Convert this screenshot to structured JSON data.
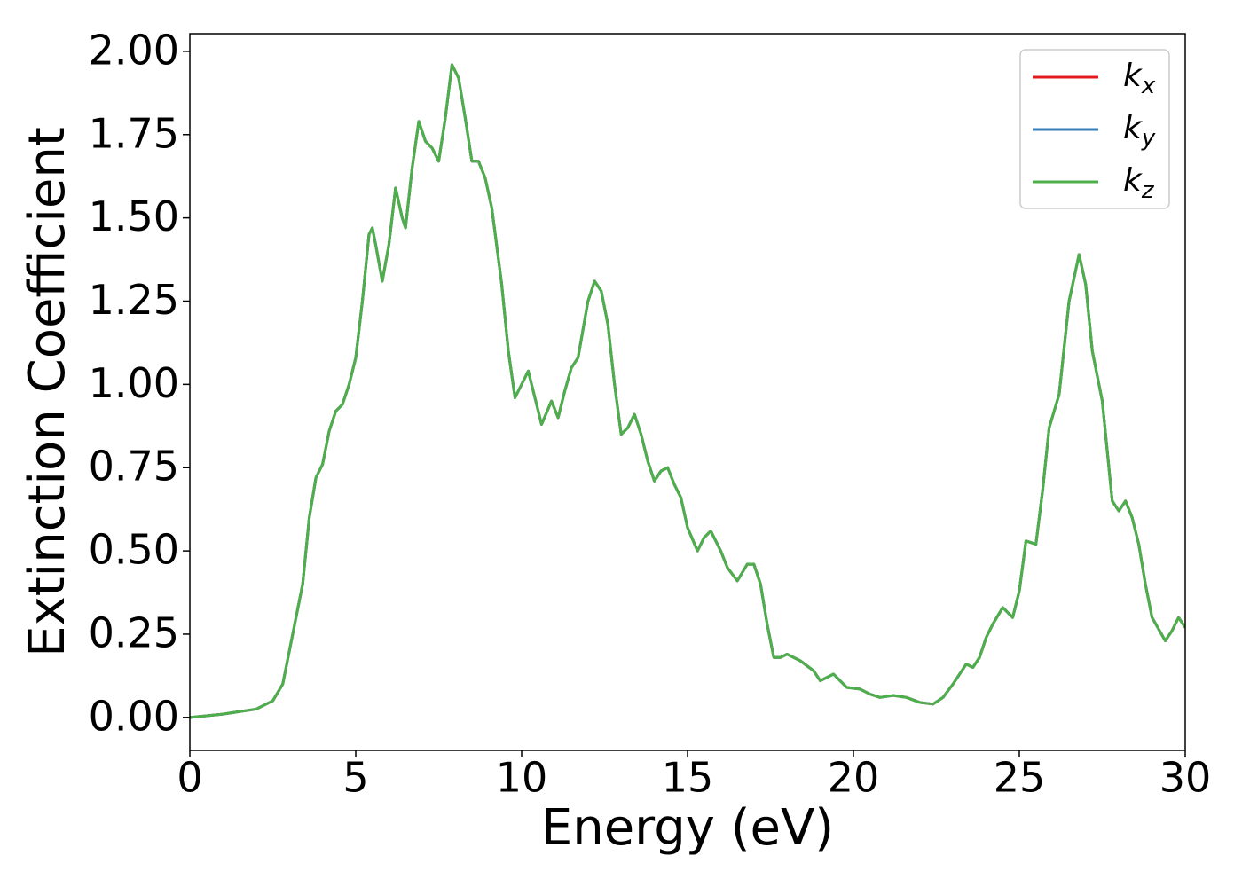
{
  "chart_data": {
    "type": "line",
    "xlabel": "Energy (eV)",
    "ylabel": "Extinction Coefficient",
    "x": [
      0,
      1,
      2,
      2.5,
      2.8,
      3.0,
      3.2,
      3.4,
      3.6,
      3.8,
      4.0,
      4.2,
      4.4,
      4.6,
      4.8,
      5.0,
      5.2,
      5.4,
      5.5,
      5.6,
      5.8,
      6.0,
      6.2,
      6.4,
      6.5,
      6.7,
      6.9,
      7.1,
      7.3,
      7.5,
      7.7,
      7.9,
      8.1,
      8.3,
      8.5,
      8.7,
      8.9,
      9.1,
      9.4,
      9.6,
      9.8,
      10.0,
      10.2,
      10.4,
      10.6,
      10.9,
      11.1,
      11.3,
      11.5,
      11.7,
      12.0,
      12.2,
      12.4,
      12.6,
      12.8,
      13.0,
      13.2,
      13.4,
      13.6,
      13.8,
      14.0,
      14.2,
      14.4,
      14.6,
      14.8,
      15.0,
      15.3,
      15.5,
      15.7,
      16.0,
      16.2,
      16.5,
      16.8,
      17.0,
      17.2,
      17.4,
      17.6,
      17.8,
      18.0,
      18.4,
      18.8,
      19.0,
      19.2,
      19.4,
      19.6,
      19.8,
      20.2,
      20.5,
      20.8,
      21.2,
      21.6,
      22.0,
      22.4,
      22.7,
      23.0,
      23.4,
      23.6,
      23.8,
      24.0,
      24.2,
      24.5,
      24.8,
      25.0,
      25.2,
      25.5,
      25.7,
      25.9,
      26.2,
      26.5,
      26.8,
      27.0,
      27.2,
      27.5,
      27.8,
      28.0,
      28.2,
      28.4,
      28.6,
      28.8,
      29.0,
      29.4,
      29.6,
      29.8,
      30.0
    ],
    "series": [
      {
        "name": "kx",
        "color": "#e41a1c",
        "values": [
          0,
          0.01,
          0.025,
          0.05,
          0.1,
          0.2,
          0.3,
          0.4,
          0.6,
          0.72,
          0.76,
          0.86,
          0.92,
          0.94,
          1.0,
          1.08,
          1.25,
          1.45,
          1.47,
          1.42,
          1.31,
          1.42,
          1.59,
          1.5,
          1.47,
          1.65,
          1.79,
          1.73,
          1.71,
          1.67,
          1.8,
          1.96,
          1.92,
          1.8,
          1.67,
          1.67,
          1.62,
          1.53,
          1.3,
          1.1,
          0.96,
          1.0,
          1.04,
          0.96,
          0.88,
          0.95,
          0.9,
          0.98,
          1.05,
          1.08,
          1.25,
          1.31,
          1.28,
          1.18,
          1.0,
          0.85,
          0.87,
          0.91,
          0.85,
          0.77,
          0.71,
          0.74,
          0.75,
          0.7,
          0.66,
          0.57,
          0.5,
          0.54,
          0.56,
          0.5,
          0.45,
          0.41,
          0.46,
          0.46,
          0.4,
          0.28,
          0.18,
          0.18,
          0.19,
          0.17,
          0.14,
          0.11,
          0.12,
          0.13,
          0.11,
          0.09,
          0.085,
          0.07,
          0.06,
          0.066,
          0.06,
          0.045,
          0.04,
          0.06,
          0.1,
          0.16,
          0.15,
          0.18,
          0.24,
          0.28,
          0.33,
          0.3,
          0.38,
          0.53,
          0.52,
          0.68,
          0.87,
          0.97,
          1.25,
          1.39,
          1.3,
          1.1,
          0.95,
          0.65,
          0.62,
          0.65,
          0.6,
          0.52,
          0.4,
          0.3,
          0.23,
          0.26,
          0.3,
          0.27
        ]
      },
      {
        "name": "ky",
        "color": "#377eb8",
        "values": [
          0,
          0.01,
          0.025,
          0.05,
          0.1,
          0.2,
          0.3,
          0.4,
          0.6,
          0.72,
          0.76,
          0.86,
          0.92,
          0.94,
          1.0,
          1.08,
          1.25,
          1.45,
          1.47,
          1.42,
          1.31,
          1.42,
          1.59,
          1.5,
          1.47,
          1.65,
          1.79,
          1.73,
          1.71,
          1.67,
          1.8,
          1.96,
          1.92,
          1.8,
          1.67,
          1.67,
          1.62,
          1.53,
          1.3,
          1.1,
          0.96,
          1.0,
          1.04,
          0.96,
          0.88,
          0.95,
          0.9,
          0.98,
          1.05,
          1.08,
          1.25,
          1.31,
          1.28,
          1.18,
          1.0,
          0.85,
          0.87,
          0.91,
          0.85,
          0.77,
          0.71,
          0.74,
          0.75,
          0.7,
          0.66,
          0.57,
          0.5,
          0.54,
          0.56,
          0.5,
          0.45,
          0.41,
          0.46,
          0.46,
          0.4,
          0.28,
          0.18,
          0.18,
          0.19,
          0.17,
          0.14,
          0.11,
          0.12,
          0.13,
          0.11,
          0.09,
          0.085,
          0.07,
          0.06,
          0.066,
          0.06,
          0.045,
          0.04,
          0.06,
          0.1,
          0.16,
          0.15,
          0.18,
          0.24,
          0.28,
          0.33,
          0.3,
          0.38,
          0.53,
          0.52,
          0.68,
          0.87,
          0.97,
          1.25,
          1.39,
          1.3,
          1.1,
          0.95,
          0.65,
          0.62,
          0.65,
          0.6,
          0.52,
          0.4,
          0.3,
          0.23,
          0.26,
          0.3,
          0.27
        ]
      },
      {
        "name": "kz",
        "color": "#4daf4a",
        "values": [
          0,
          0.01,
          0.025,
          0.05,
          0.1,
          0.2,
          0.3,
          0.4,
          0.6,
          0.72,
          0.76,
          0.86,
          0.92,
          0.94,
          1.0,
          1.08,
          1.25,
          1.45,
          1.47,
          1.42,
          1.31,
          1.42,
          1.59,
          1.5,
          1.47,
          1.65,
          1.79,
          1.73,
          1.71,
          1.67,
          1.8,
          1.96,
          1.92,
          1.8,
          1.67,
          1.67,
          1.62,
          1.53,
          1.3,
          1.1,
          0.96,
          1.0,
          1.04,
          0.96,
          0.88,
          0.95,
          0.9,
          0.98,
          1.05,
          1.08,
          1.25,
          1.31,
          1.28,
          1.18,
          1.0,
          0.85,
          0.87,
          0.91,
          0.85,
          0.77,
          0.71,
          0.74,
          0.75,
          0.7,
          0.66,
          0.57,
          0.5,
          0.54,
          0.56,
          0.5,
          0.45,
          0.41,
          0.46,
          0.46,
          0.4,
          0.28,
          0.18,
          0.18,
          0.19,
          0.17,
          0.14,
          0.11,
          0.12,
          0.13,
          0.11,
          0.09,
          0.085,
          0.07,
          0.06,
          0.066,
          0.06,
          0.045,
          0.04,
          0.06,
          0.1,
          0.16,
          0.15,
          0.18,
          0.24,
          0.28,
          0.33,
          0.3,
          0.38,
          0.53,
          0.52,
          0.68,
          0.87,
          0.97,
          1.25,
          1.39,
          1.3,
          1.1,
          0.95,
          0.65,
          0.62,
          0.65,
          0.6,
          0.52,
          0.4,
          0.3,
          0.23,
          0.26,
          0.3,
          0.27
        ]
      }
    ],
    "xlim": [
      0,
      30
    ],
    "xticks": [
      0,
      5,
      10,
      15,
      20,
      25,
      30
    ],
    "ylim": [
      -0.099,
      2.053
    ],
    "yticks": [
      {
        "value": 0,
        "label": "0.00"
      },
      {
        "value": 0.25,
        "label": "0.25"
      },
      {
        "value": 0.5,
        "label": "0.50"
      },
      {
        "value": 0.75,
        "label": "0.75"
      },
      {
        "value": 1.0,
        "label": "1.00"
      },
      {
        "value": 1.25,
        "label": "1.25"
      },
      {
        "value": 1.5,
        "label": "1.50"
      },
      {
        "value": 1.75,
        "label": "1.75"
      },
      {
        "value": 2.0,
        "label": "2.00"
      }
    ],
    "legend": "upper right",
    "grid": false
  }
}
